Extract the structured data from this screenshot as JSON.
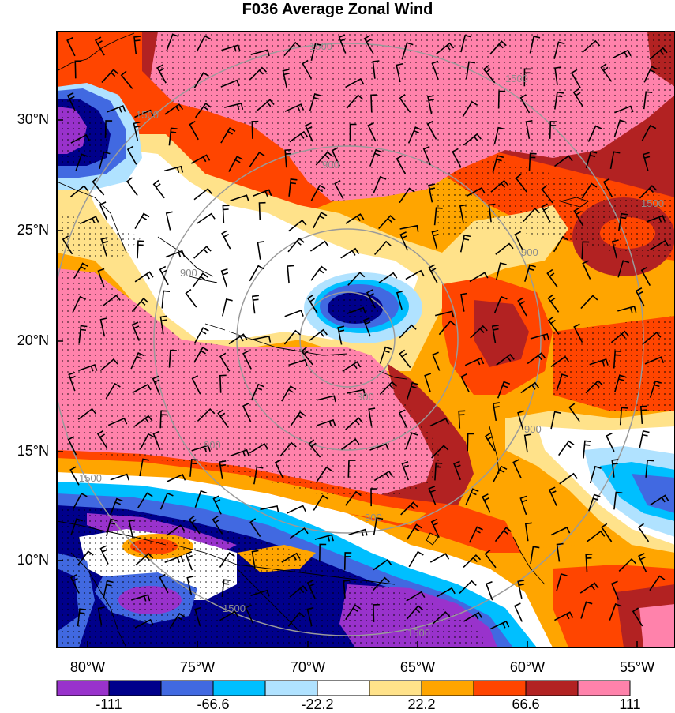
{
  "title": "F036 Average Zonal Wind",
  "latitude_labels": [
    "30°N",
    "25°N",
    "20°N",
    "15°N",
    "10°N"
  ],
  "longitude_labels": [
    "80°W",
    "75°W",
    "70°W",
    "65°W",
    "60°W",
    "55°W"
  ],
  "colorbar": {
    "colors": [
      "#9932cc",
      "#00008b",
      "#4169e1",
      "#00bfff",
      "#b0e2ff",
      "#ffffff",
      "#ffe28a",
      "#ffa500",
      "#ff4500",
      "#b22222",
      "#ff82ab"
    ],
    "labels": [
      "-111",
      "-66.6",
      "-22.2",
      "22.2",
      "66.6",
      "111"
    ]
  },
  "range_ring_labels": [
    "300",
    "900",
    "900",
    "900",
    "900",
    "900",
    "900",
    "1500",
    "1500",
    "1500",
    "1500",
    "1500",
    "1500",
    "1500"
  ],
  "overlays": [
    "wind barbs",
    "stippling",
    "coastlines",
    "range rings"
  ]
}
